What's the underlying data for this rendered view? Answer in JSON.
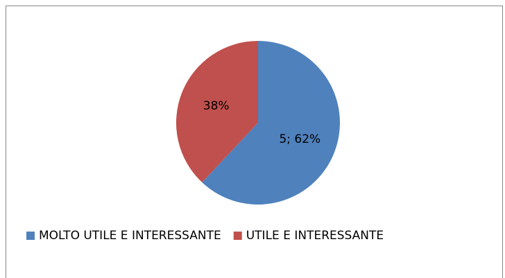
{
  "chart_data": {
    "type": "pie",
    "categories": [
      "MOLTO UTILE E INTERESSANTE",
      "UTILE E INTERESSANTE"
    ],
    "values": [
      62,
      38
    ],
    "value_labels": [
      "5; 62%",
      "38%"
    ],
    "colors": [
      "#4f81bd",
      "#c0504d"
    ],
    "legend": "bottom"
  }
}
